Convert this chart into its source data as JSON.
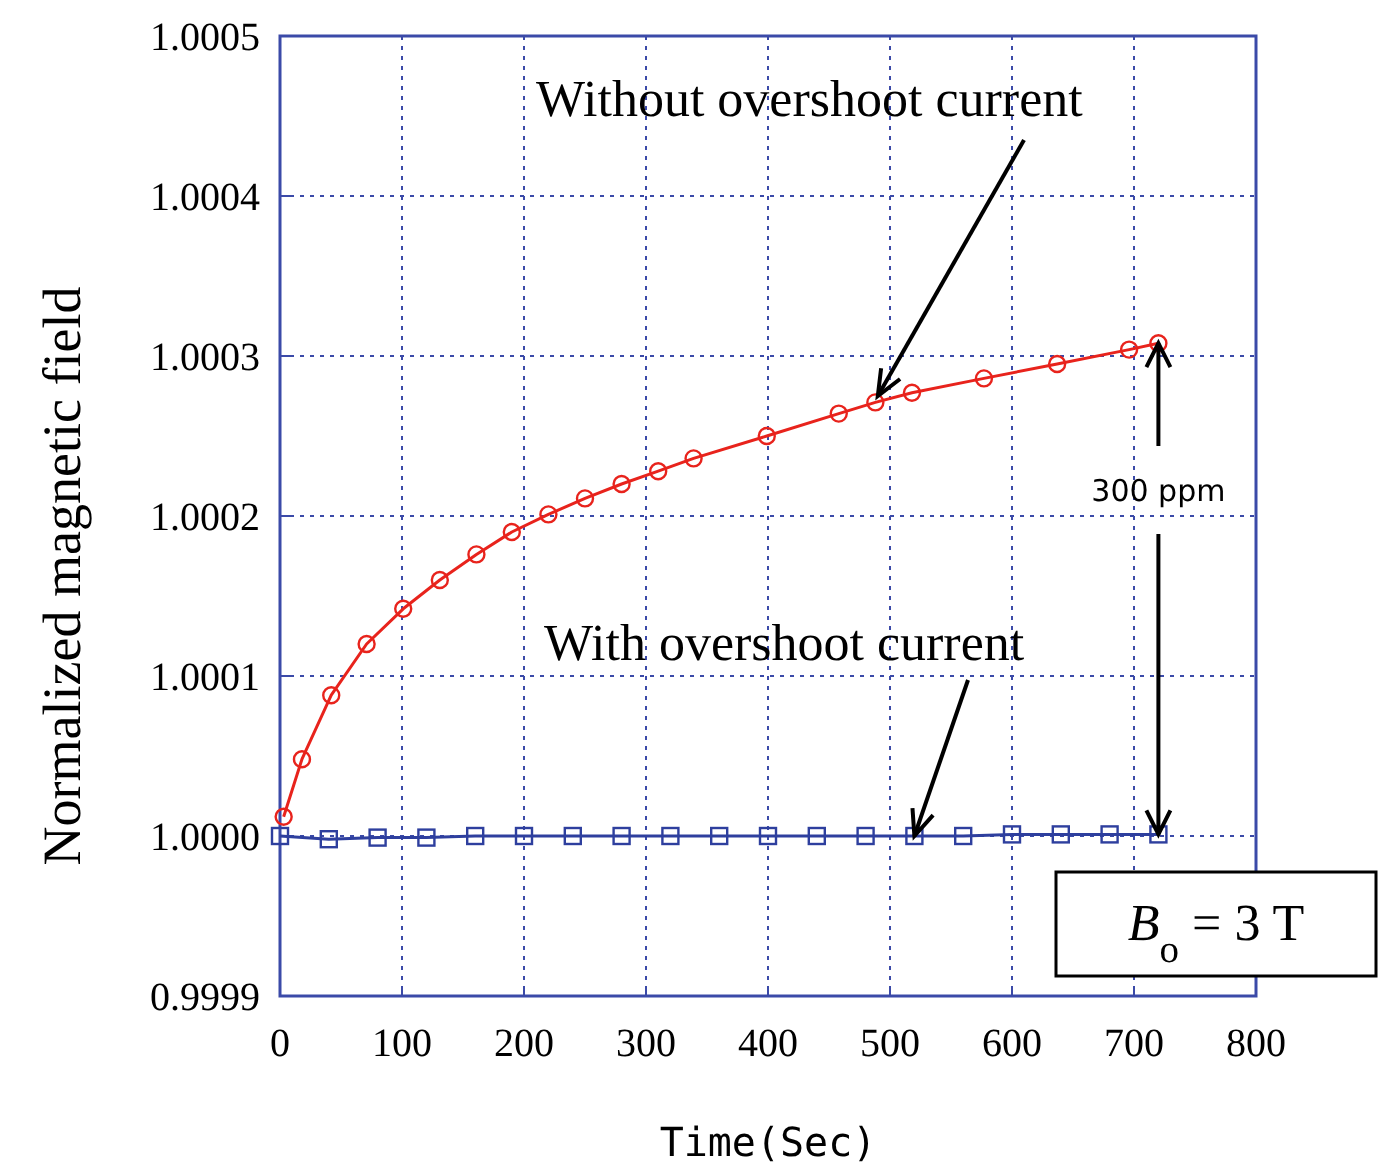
{
  "chart_data": {
    "type": "line",
    "xlabel": "Time(Sec)",
    "ylabel": "Normalized magnetic field",
    "xlim": [
      0,
      800
    ],
    "xticks": [
      0,
      100,
      200,
      300,
      400,
      500,
      600,
      700,
      800
    ],
    "ylim": [
      0.9999,
      1.0005
    ],
    "yticks": [
      0.9999,
      {
        "value": 1.0,
        "label": "1.0000"
      },
      1.0001,
      1.0002,
      1.0003,
      1.0004,
      1.0005
    ],
    "grid": true,
    "series": [
      {
        "color": "#e8231c",
        "marker": "circle",
        "x": [
          3,
          18,
          42,
          71,
          101,
          131,
          161,
          190,
          220,
          250,
          280,
          310,
          339,
          399,
          458,
          488,
          518,
          577,
          637,
          696,
          720
        ],
        "values": [
          1.000012,
          1.000048,
          1.000088,
          1.00012,
          1.000142,
          1.00016,
          1.000176,
          1.00019,
          1.000201,
          1.000211,
          1.00022,
          1.000228,
          1.000236,
          1.00025,
          1.000264,
          1.000271,
          1.000277,
          1.000286,
          1.000295,
          1.000304,
          1.000308
        ]
      },
      {
        "color": "#2e3f9e",
        "marker": "square",
        "x": [
          0,
          40,
          80,
          120,
          160,
          200,
          240,
          280,
          320,
          360,
          400,
          440,
          480,
          520,
          560,
          600,
          640,
          680,
          720
        ],
        "values": [
          1.0,
          0.999998,
          0.999999,
          0.999999,
          1.0,
          1.0,
          1.0,
          1.0,
          1.0,
          1.0,
          1.0,
          1.0,
          1.0,
          1.0,
          1.0,
          1.000001,
          1.000001,
          1.000001,
          1.000001
        ]
      }
    ],
    "annotations": [
      {
        "text": "Without overshoot current",
        "x": 490,
        "y": 1.000275
      },
      {
        "text": "With overshoot current",
        "x": 520,
        "y": 1.0
      },
      {
        "text": "300 ppm",
        "x": 720,
        "y": 1.000308
      },
      "B$_{o}$ = 3 T"
    ]
  }
}
